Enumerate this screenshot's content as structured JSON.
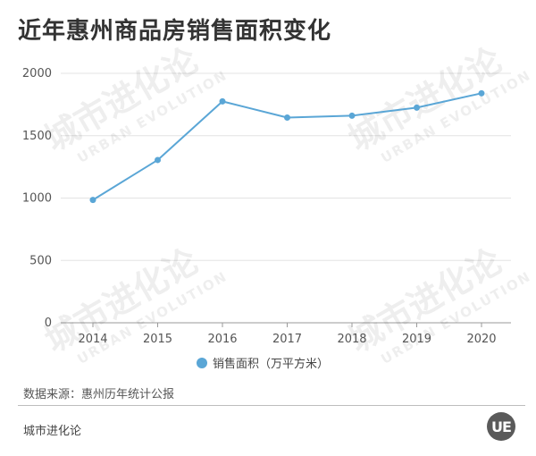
{
  "title": "近年惠州商品房销售面积变化",
  "chart_data": {
    "type": "line",
    "x": [
      "2014",
      "2015",
      "2016",
      "2017",
      "2018",
      "2019",
      "2020"
    ],
    "series": [
      {
        "name": "销售面积（万平方米）",
        "values": [
          985,
          1305,
          1775,
          1645,
          1660,
          1725,
          1840
        ],
        "color": "#5aa6d6"
      }
    ],
    "ylim": [
      0,
      2000
    ],
    "yticks": [
      0,
      500,
      1000,
      1500,
      2000
    ],
    "grid": true,
    "legend": "bottom"
  },
  "source": "数据来源：惠州历年统计公报",
  "brand": "城市进化论",
  "logo_text": "UE",
  "watermark": {
    "cn": "城市进化论",
    "en": "URBAN EVOLUTION"
  }
}
